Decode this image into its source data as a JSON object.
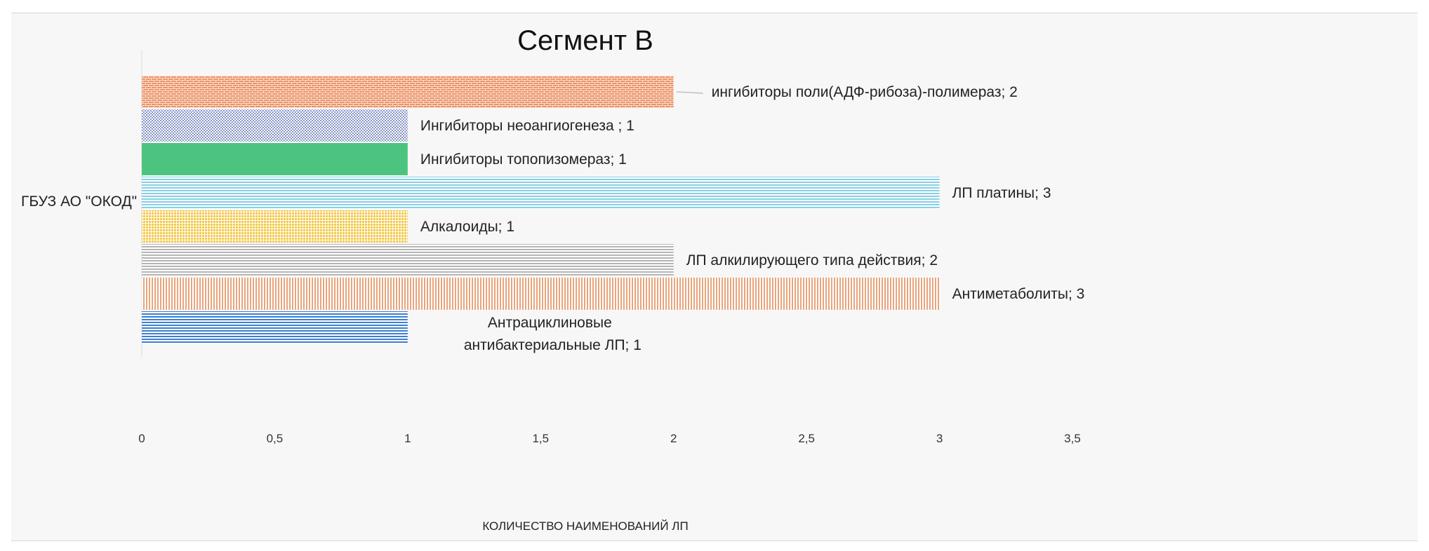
{
  "chart_data": {
    "type": "bar",
    "orientation": "horizontal",
    "title": "Сегмент В",
    "xlabel": "КОЛИЧЕСТВО НАИМЕНОВАНИЙ ЛП",
    "ylabel": "",
    "category": "ГБУЗ АО \"ОКОД\"",
    "xlim": [
      0,
      3.5
    ],
    "x_ticks": [
      "0",
      "0,5",
      "1",
      "1,5",
      "2",
      "2,5",
      "3",
      "3,5"
    ],
    "grid": false,
    "legend": "none",
    "series": [
      {
        "name": "Антрациклиновые антибактериальные ЛП",
        "value": 1,
        "label_lines": [
          "Антрациклиновые",
          "антибактериальные ЛП; 1"
        ],
        "color": "#3a7fd0",
        "pattern": "hlines"
      },
      {
        "name": "Антиметаболиты",
        "value": 3,
        "label_lines": [
          "Антиметаболиты; 3"
        ],
        "color": "#e8a47c",
        "pattern": "vlines"
      },
      {
        "name": "ЛП алкилирующего типа действия",
        "value": 2,
        "label_lines": [
          "ЛП алкилирующего типа действия; 2"
        ],
        "color": "#b4b4b4",
        "pattern": "hlines"
      },
      {
        "name": "Алкалоиды",
        "value": 1,
        "label_lines": [
          "Алкалоиды; 1"
        ],
        "color": "#f2c94a",
        "pattern": "grid"
      },
      {
        "name": "ЛП платины",
        "value": 3,
        "label_lines": [
          "ЛП платины; 3"
        ],
        "color": "#86cfe6",
        "pattern": "hlines"
      },
      {
        "name": "Ингибиторы топопизомераз",
        "value": 1,
        "label_lines": [
          "Ингибиторы  топопизомераз; 1"
        ],
        "color": "#4cc480",
        "pattern": "solid"
      },
      {
        "name": "Ингибиторы неоангиогенеза",
        "value": 1,
        "label_lines": [
          "Ингибиторы неоангиогенеза ; 1"
        ],
        "color": "#8795c4",
        "pattern": "dots"
      },
      {
        "name": "ингибиторы поли(АДФ-рибоза)-полимераз",
        "value": 2,
        "label_lines": [
          "ингибиторы поли(АДФ-рибоза)-полимераз; 2"
        ],
        "color": "#ec9468",
        "pattern": "brick"
      }
    ]
  }
}
